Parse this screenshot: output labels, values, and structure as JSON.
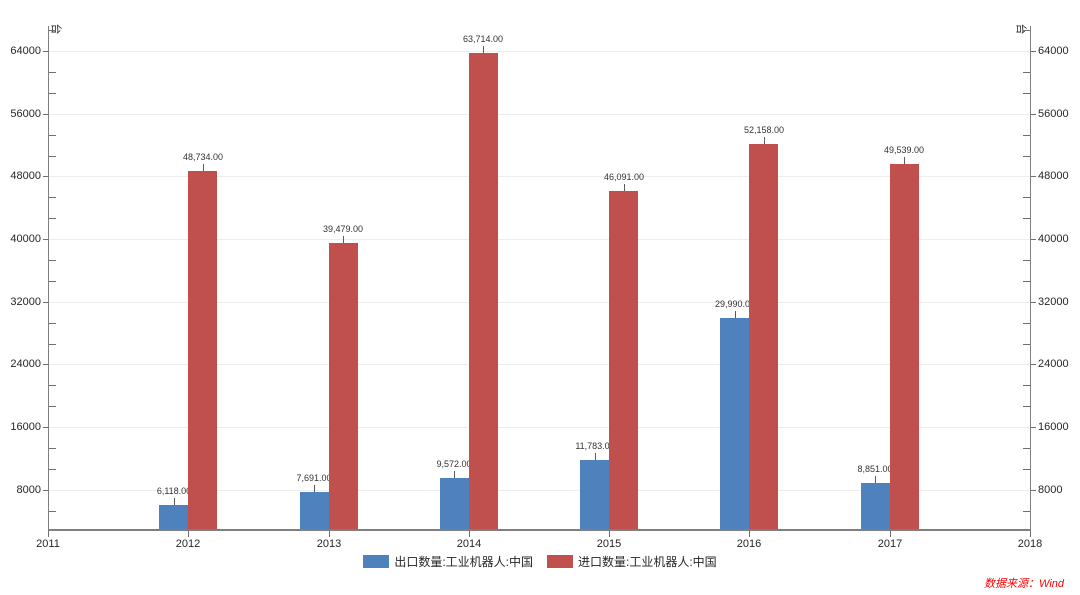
{
  "chart_data": {
    "type": "bar",
    "title": "",
    "unit_label": "台",
    "legend_position": "bottom",
    "grid": true,
    "categories": [
      2012,
      2013,
      2014,
      2015,
      2016,
      2017
    ],
    "series": [
      {
        "name": "出口数量:工业机器人:中国",
        "color": "#4F81BC",
        "values": [
          6118,
          7691,
          9572,
          11783,
          29990,
          8851
        ],
        "value_labels": [
          "6,118.00",
          "7,691.00",
          "9,572.00",
          "11,783.00",
          "29,990.00",
          "8,851.00"
        ]
      },
      {
        "name": "进口数量:工业机器人:中国",
        "color": "#C0504D",
        "values": [
          48734,
          39479,
          63714,
          46091,
          52158,
          49539
        ],
        "value_labels": [
          "48,734.00",
          "39,479.00",
          "63,714.00",
          "46,091.00",
          "52,158.00",
          "49,539.00"
        ]
      }
    ],
    "x_axis": {
      "range": [
        2011,
        2018
      ],
      "tick_labels": [
        "2011",
        "2012",
        "2013",
        "2014",
        "2015",
        "2016",
        "2017",
        "2018"
      ]
    },
    "y_axis": {
      "min": 3000,
      "max": 67200,
      "tick_values": [
        8000,
        16000,
        24000,
        32000,
        40000,
        48000,
        56000,
        64000
      ],
      "tick_labels": [
        "8000",
        "16000",
        "24000",
        "32000",
        "40000",
        "48000",
        "56000",
        "64000"
      ]
    }
  },
  "source_note": "数据来源：Wind",
  "colors": {
    "export_blue": "#4F81BC",
    "import_red": "#C0504D",
    "axis": "#7f7f7f",
    "grid": "#ededed",
    "source_text": "#ff0000"
  }
}
